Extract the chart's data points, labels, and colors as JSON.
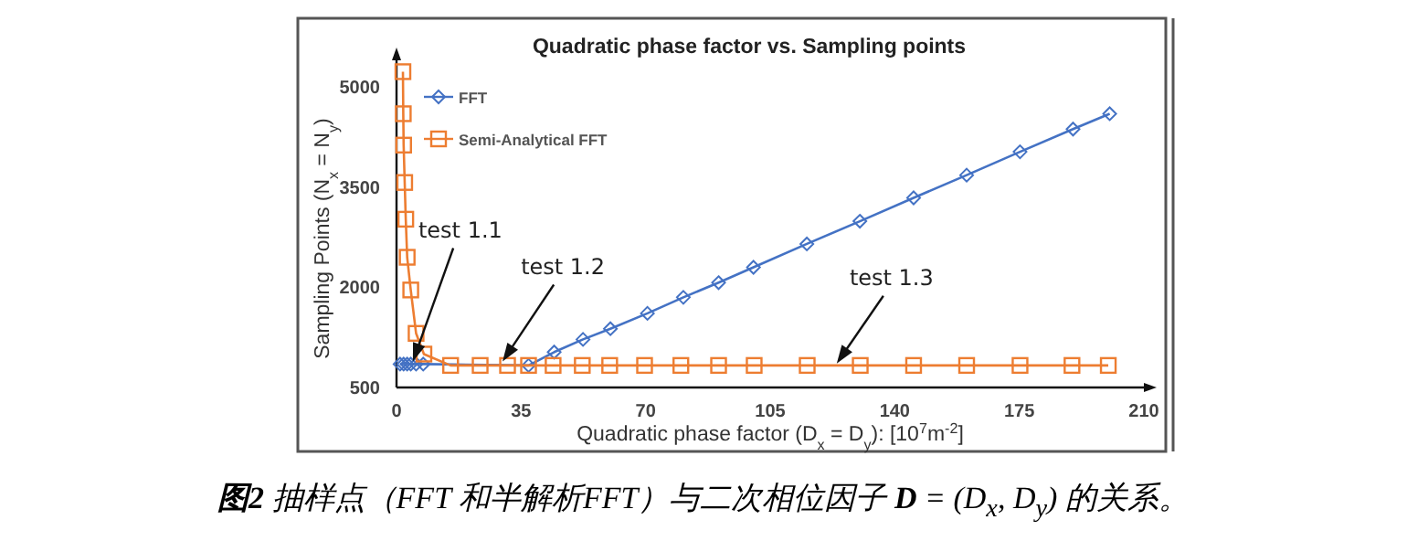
{
  "chart_data": {
    "type": "line",
    "title": "Quadratic phase factor vs. Sampling points",
    "xlabel": "Quadratic phase factor (D$_{x}$ = D$_{y}$): [10$^{7}$m$^{-2}$]",
    "ylabel": "Sampling Points (N$_{x}$ = N$_{y}$)",
    "xlim": [
      0,
      210
    ],
    "xticks": [
      0,
      35,
      70,
      105,
      140,
      175,
      210
    ],
    "ylim": [
      500,
      5400
    ],
    "yticks": [
      500,
      2000,
      3500,
      5000
    ],
    "grid": false,
    "legend": "top left",
    "series": [
      {
        "name": "FFT",
        "color": "#4472c4",
        "marker": "diamond",
        "x": [
          1.0,
          2.0,
          3.0,
          4.0,
          5.5,
          7.5,
          37.1,
          44.3,
          52.4,
          60.1,
          70.5,
          80.6,
          90.5,
          100.3,
          115.3,
          130.2,
          145.3,
          160.2,
          175.2,
          190.1,
          200.4
        ],
        "values": [
          850,
          850,
          850,
          850,
          850,
          850,
          830,
          1030,
          1220,
          1380,
          1610,
          1850,
          2070,
          2300,
          2650,
          2990,
          3340,
          3680,
          4030,
          4370,
          4600
        ]
      },
      {
        "name": "Semi-Analytical FFT",
        "color": "#ed7d31",
        "marker": "square",
        "x": [
          1.8,
          1.9,
          2.0,
          2.3,
          2.6,
          3.0,
          4.0,
          5.5,
          7.7,
          15.2,
          23.5,
          31.2,
          37.1,
          44.0,
          52.2,
          59.9,
          69.7,
          79.9,
          90.5,
          100.5,
          115.4,
          130.3,
          145.3,
          160.2,
          175.2,
          189.8,
          200.0
        ],
        "values": [
          5230,
          4600,
          4130,
          3570,
          3020,
          2450,
          1960,
          1310,
          1000,
          830,
          830,
          830,
          830,
          830,
          830,
          830,
          830,
          830,
          830,
          830,
          830,
          830,
          830,
          830,
          830,
          830,
          830
        ]
      }
    ],
    "annotations": [
      {
        "text": "test 1.1",
        "x": 4.6,
        "y": 890
      },
      {
        "text": "test 1.2",
        "x": 29.8,
        "y": 890
      },
      {
        "text": "test 1.3",
        "x": 123.7,
        "y": 860
      },
      "**图2** 抽样点（FFT 和半解析FFT）与二次相位因子 **D** = (D$_{x}$, D$_{y}$) 的关系。"
    ]
  }
}
